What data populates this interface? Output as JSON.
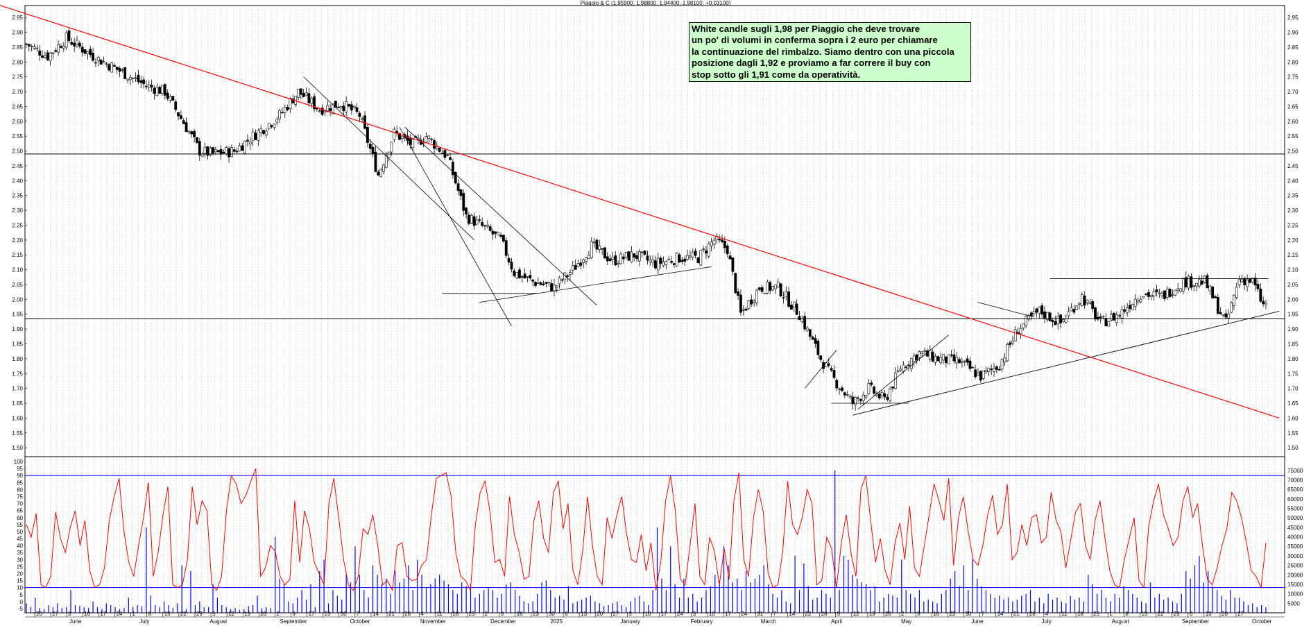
{
  "header": {
    "title": "Piaggio & C (1.95900, 1.98800, 1.94400, 1.98100, +0.03100)"
  },
  "annotation": {
    "lines": [
      "White candle sugli 1,98 per Piaggio che deve trovare",
      "un po' di volumi in conferma sopra i 2 euro per chiamare",
      "la continuazione del rimbalzo. Siamo dentro con una piccola",
      "posizione dagli 1,92 e proviamo a far correre il buy con",
      "stop sotto gli 1,91 come da operatività."
    ]
  },
  "colors": {
    "trendline_red": "#ff0000",
    "oscillator": "#ff0000",
    "volume": "#0000ff",
    "bands": "#0000ff",
    "candles": "#000000",
    "note_bg": "#ccffcc"
  },
  "chart_data": [
    {
      "type": "candlestick",
      "title": "Piaggio & C (1.95900, 1.98800, 1.94400, 1.98100, +0.03100)",
      "y_ticks": [
        "2.95",
        "2.90",
        "2.85",
        "2.80",
        "2.75",
        "2.70",
        "2.65",
        "2.60",
        "2.55",
        "2.50",
        "2.45",
        "2.40",
        "2.35",
        "2.30",
        "2.25",
        "2.20",
        "2.15",
        "2.10",
        "2.05",
        "2.00",
        "1.95",
        "1.90",
        "1.85",
        "1.80",
        "1.75",
        "1.70",
        "1.65",
        "1.60",
        "1.55",
        "1.50"
      ],
      "ylim": [
        1.47,
        2.99
      ],
      "grid": true,
      "horizontal_levels": [
        2.49,
        1.935
      ],
      "close_path": [
        [
          0,
          2.86
        ],
        [
          8,
          2.82
        ],
        [
          15,
          2.88
        ],
        [
          25,
          2.82
        ],
        [
          35,
          2.77
        ],
        [
          45,
          2.72
        ],
        [
          52,
          2.7
        ],
        [
          60,
          2.58
        ],
        [
          65,
          2.5
        ],
        [
          70,
          2.49
        ],
        [
          78,
          2.5
        ],
        [
          85,
          2.55
        ],
        [
          95,
          2.62
        ],
        [
          102,
          2.7
        ],
        [
          110,
          2.64
        ],
        [
          118,
          2.66
        ],
        [
          125,
          2.62
        ],
        [
          132,
          2.42
        ],
        [
          138,
          2.56
        ],
        [
          145,
          2.52
        ],
        [
          150,
          2.55
        ],
        [
          158,
          2.48
        ],
        [
          165,
          2.28
        ],
        [
          172,
          2.24
        ],
        [
          178,
          2.2
        ],
        [
          183,
          2.09
        ],
        [
          190,
          2.06
        ],
        [
          198,
          2.04
        ],
        [
          205,
          2.1
        ],
        [
          212,
          2.18
        ],
        [
          220,
          2.13
        ],
        [
          228,
          2.15
        ],
        [
          236,
          2.12
        ],
        [
          245,
          2.14
        ],
        [
          252,
          2.14
        ],
        [
          258,
          2.2
        ],
        [
          263,
          2.17
        ],
        [
          268,
          1.95
        ],
        [
          275,
          2.04
        ],
        [
          282,
          2.04
        ],
        [
          290,
          1.95
        ],
        [
          298,
          1.8
        ],
        [
          303,
          1.73
        ],
        [
          310,
          1.65
        ],
        [
          316,
          1.7
        ],
        [
          322,
          1.66
        ],
        [
          328,
          1.77
        ],
        [
          335,
          1.82
        ],
        [
          342,
          1.8
        ],
        [
          350,
          1.79
        ],
        [
          358,
          1.74
        ],
        [
          365,
          1.78
        ],
        [
          372,
          1.9
        ],
        [
          380,
          1.96
        ],
        [
          388,
          1.92
        ],
        [
          396,
          2.01
        ],
        [
          403,
          1.92
        ],
        [
          410,
          1.95
        ],
        [
          418,
          2.02
        ],
        [
          426,
          2.01
        ],
        [
          434,
          2.06
        ],
        [
          442,
          2.06
        ],
        [
          450,
          1.92
        ],
        [
          455,
          2.07
        ],
        [
          460,
          2.06
        ],
        [
          464,
          1.98
        ]
      ]
    },
    {
      "type": "line",
      "title": "",
      "y_ticks": [
        "100",
        "95",
        "90",
        "85",
        "80",
        "75",
        "70",
        "65",
        "60",
        "55",
        "50",
        "45",
        "40",
        "35",
        "30",
        "25",
        "20",
        "15",
        "10",
        "5",
        "0",
        "-5"
      ],
      "ylim": [
        -8,
        101
      ],
      "bands": [
        90,
        10
      ],
      "series": [
        {
          "name": "",
          "values": [
            55,
            46,
            63,
            12,
            10,
            18,
            64,
            45,
            35,
            53,
            65,
            40,
            58,
            22,
            10,
            12,
            24,
            58,
            75,
            88,
            50,
            28,
            18,
            40,
            60,
            85,
            18,
            35,
            62,
            82,
            12,
            10,
            12,
            30,
            82,
            55,
            72,
            65,
            12,
            8,
            18,
            65,
            90,
            84,
            70,
            76,
            86,
            95,
            18,
            24,
            40,
            36,
            18,
            12,
            16,
            72,
            28,
            65,
            52,
            28,
            20,
            12,
            70,
            88,
            60,
            30,
            12,
            8,
            18,
            52,
            48,
            62,
            40,
            12,
            15,
            8,
            40,
            42,
            18,
            15,
            16,
            26,
            30,
            62,
            88,
            90,
            92,
            76,
            35,
            18,
            15,
            8,
            55,
            78,
            86,
            64,
            28,
            30,
            18,
            75,
            48,
            35,
            16,
            18,
            58,
            72,
            45,
            35,
            78,
            86,
            52,
            70,
            22,
            12,
            36,
            75,
            40,
            18,
            12,
            60,
            45,
            62,
            75,
            48,
            30,
            28,
            48,
            22,
            42,
            8,
            28,
            72,
            90,
            64,
            16,
            12,
            40,
            70,
            18,
            12,
            46,
            36,
            12,
            38,
            16,
            72,
            92,
            30,
            18,
            60,
            80,
            64,
            20,
            10,
            12,
            36,
            86,
            55,
            48,
            60,
            80,
            70,
            12,
            15,
            46,
            38,
            10,
            42,
            62,
            34,
            18,
            80,
            90,
            58,
            28,
            45,
            22,
            12,
            42,
            56,
            30,
            68,
            24,
            18,
            40,
            62,
            84,
            72,
            58,
            88,
            26,
            60,
            75,
            50,
            30,
            26,
            40,
            62,
            76,
            48,
            55,
            84,
            30,
            35,
            55,
            40,
            60,
            62,
            42,
            46,
            78,
            58,
            50,
            24,
            44,
            64,
            70,
            40,
            30,
            58,
            72,
            46,
            22,
            12,
            10,
            30,
            45,
            60,
            15,
            10,
            54,
            72,
            84,
            62,
            52,
            40,
            46,
            72,
            82,
            60,
            70,
            40,
            16,
            12,
            24,
            40,
            52,
            78,
            72,
            60,
            42,
            22,
            18,
            10,
            42
          ]
        }
      ]
    },
    {
      "type": "bar",
      "title": "",
      "y_ticks": [
        "75000",
        "70000",
        "65000",
        "60000",
        "55000",
        "50000",
        "45000",
        "40000",
        "35000",
        "30000",
        "25000",
        "20000",
        "15000",
        "10000",
        "5000"
      ],
      "ylim": [
        0,
        78000
      ],
      "values": [
        5000,
        3000,
        8000,
        2500,
        2000,
        4000,
        3000,
        5000,
        2500,
        3000,
        12000,
        4000,
        3500,
        3000,
        2500,
        6000,
        3000,
        2000,
        5000,
        4000,
        3000,
        2000,
        2500,
        8000,
        3000,
        4000,
        3500,
        45000,
        9000,
        4000,
        3000,
        6000,
        4000,
        2500,
        5000,
        25000,
        2000,
        22000,
        4000,
        6000,
        3000,
        3000,
        15000,
        8000,
        4000,
        3000,
        2000,
        2500,
        1500,
        2000,
        3500,
        4000,
        9000,
        2500,
        3000,
        2500,
        40000,
        18000,
        15000,
        6000,
        5000,
        8000,
        12000,
        7000,
        15000,
        3000,
        22000,
        28000,
        5000,
        12000,
        9000,
        7000,
        20000,
        16000,
        35000,
        20000,
        12000,
        8000,
        25000,
        20000,
        15000,
        18000,
        10000,
        22000,
        16000,
        18000,
        25000,
        12000,
        28000,
        20000,
        13000,
        15000,
        18000,
        20000,
        17000,
        15000,
        12000,
        10000,
        16000,
        14000,
        15000,
        8000,
        10000,
        12000,
        13000,
        12000,
        8000,
        10000,
        15000,
        16000,
        12000,
        9000,
        6000,
        5000,
        6000,
        10000,
        16000,
        17000,
        12000,
        8000,
        9000,
        7000,
        14000,
        5000,
        6000,
        7000,
        8000,
        9000,
        6000,
        5000,
        3500,
        4000,
        5000,
        6000,
        4000,
        3000,
        6000,
        8000,
        9000,
        6000,
        4000,
        12000,
        45000,
        18000,
        12000,
        35000,
        15000,
        8000,
        18000,
        8000,
        10000,
        6000,
        8000,
        12000,
        14000,
        20000,
        17000,
        35000,
        25000,
        16000,
        18000,
        12000,
        22000,
        16000,
        18000,
        20000,
        25000,
        15000,
        10000,
        8000,
        12000,
        6000,
        5000,
        30000,
        12000,
        26000,
        14000,
        7000,
        8000,
        12000,
        10000,
        8000,
        75000,
        12000,
        30000,
        28000,
        20000,
        18000,
        16000,
        15000,
        12000,
        14000,
        6000,
        8000,
        10000,
        9000,
        8000,
        28000,
        12000,
        10000,
        8000,
        12000,
        6000,
        7000,
        6000,
        5000,
        10000,
        12000,
        18000,
        22000,
        14000,
        25000,
        12000,
        28000,
        18000,
        14000,
        12000,
        10000,
        8000,
        9000,
        7000,
        8000,
        6000,
        7000,
        9000,
        10000,
        12000,
        6000,
        8000,
        5000,
        10000,
        7000,
        8000,
        6000,
        5000,
        9000,
        7000,
        8000,
        6000,
        20000,
        15000,
        10000,
        12000,
        8000,
        6000,
        10000,
        8000,
        14000,
        12000,
        10000,
        8000,
        6000,
        5000,
        16000,
        8000,
        10000,
        7000,
        8000,
        6000,
        5000,
        10000,
        22000,
        18000,
        25000,
        30000,
        16000,
        22000,
        14000,
        12000,
        9000,
        7000,
        12000,
        8000,
        8000,
        6000,
        4000,
        5000,
        3000,
        4000,
        3000
      ]
    }
  ],
  "x_axis": {
    "day_labels": [
      "20",
      "27",
      "3",
      "10",
      "17",
      "24",
      "1",
      "8",
      "15",
      "22",
      "29",
      "5",
      "12",
      "19",
      "26",
      "2",
      "9",
      "17",
      "23",
      "30",
      "7",
      "14",
      "21",
      "28",
      "4",
      "11",
      "18",
      "25",
      "2",
      "9",
      "16",
      "23",
      "30",
      "6",
      "13",
      "20",
      "27",
      "3",
      "10",
      "17",
      "24",
      "3",
      "10",
      "17",
      "24",
      "31",
      "7",
      "14",
      "22",
      "28",
      "5",
      "12",
      "19",
      "26",
      "2",
      "9",
      "16",
      "23",
      "30",
      "7",
      "14",
      "21",
      "28",
      "4",
      "11",
      "18",
      "25",
      "1",
      "8",
      "15",
      "22",
      "29",
      "6",
      "13",
      "20",
      "27"
    ],
    "month_labels": [
      "June",
      "July",
      "August",
      "September",
      "October",
      "November",
      "December",
      "2025",
      "January",
      "February",
      "March",
      "April",
      "May",
      "June",
      "July",
      "August",
      "September",
      "October"
    ]
  }
}
